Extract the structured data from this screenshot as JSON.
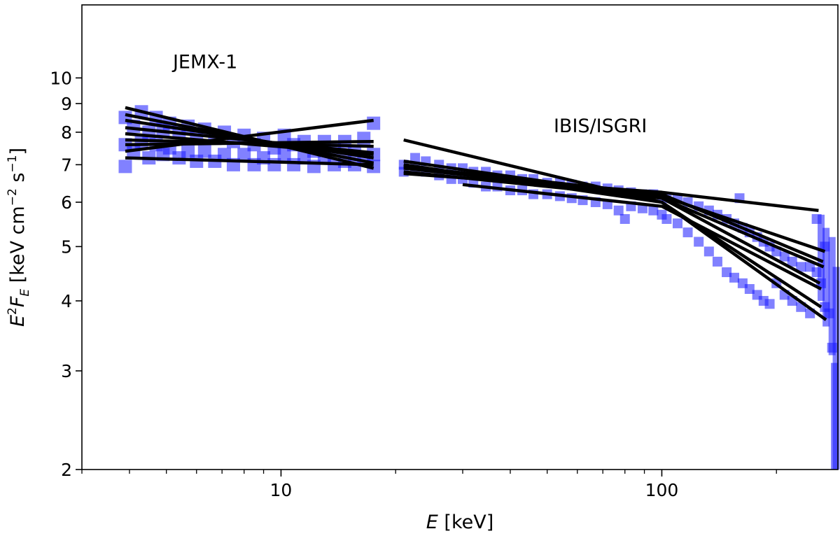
{
  "chart_data": {
    "type": "scatter",
    "title": "",
    "xlabel": {
      "symbol": "E",
      "rest": " [keV]"
    },
    "ylabel": {
      "base": "E",
      "sup": "2",
      "F": "F",
      "sub": "E",
      "rest_a": " [keV cm",
      "sup2": "−2",
      "rest_b": " s",
      "sup3": "−1",
      "rest_c": "]"
    },
    "x_scale": "log",
    "y_scale": "log",
    "xlim": [
      3.0,
      290
    ],
    "ylim": [
      2.0,
      13.5
    ],
    "x_ticks": [
      {
        "value": 10,
        "label": "10"
      },
      {
        "value": 100,
        "label": "100"
      }
    ],
    "y_ticks": [
      {
        "value": 2,
        "label": "2"
      },
      {
        "value": 3,
        "label": "3"
      },
      {
        "value": 4,
        "label": "4"
      },
      {
        "value": 5,
        "label": "5"
      },
      {
        "value": 6,
        "label": "6"
      },
      {
        "value": 7,
        "label": "7"
      },
      {
        "value": 8,
        "label": "8"
      },
      {
        "value": 9,
        "label": "9"
      },
      {
        "value": 10,
        "label": "10"
      }
    ],
    "annotations": [
      {
        "text": "JEMX-1",
        "x": 5.2,
        "y": 10.4
      },
      {
        "text": "IBIS/ISGRI",
        "x": 52,
        "y": 8.0
      }
    ],
    "point_color": "#1a1aff",
    "model_color": "#000000",
    "jemx_points": [
      [
        3.9,
        8.5
      ],
      [
        3.9,
        7.6
      ],
      [
        3.9,
        6.95
      ],
      [
        4.1,
        8.2
      ],
      [
        4.1,
        7.4
      ],
      [
        4.3,
        8.7
      ],
      [
        4.3,
        7.7
      ],
      [
        4.5,
        8.0
      ],
      [
        4.5,
        7.2
      ],
      [
        4.7,
        8.5
      ],
      [
        4.7,
        7.6
      ],
      [
        4.9,
        8.1
      ],
      [
        4.9,
        7.3
      ],
      [
        5.1,
        8.3
      ],
      [
        5.1,
        7.5
      ],
      [
        5.4,
        8.0
      ],
      [
        5.4,
        7.2
      ],
      [
        5.7,
        8.2
      ],
      [
        5.7,
        7.4
      ],
      [
        6.0,
        7.9
      ],
      [
        6.0,
        7.1
      ],
      [
        6.3,
        8.1
      ],
      [
        6.3,
        7.4
      ],
      [
        6.7,
        7.8
      ],
      [
        6.7,
        7.1
      ],
      [
        7.1,
        8.0
      ],
      [
        7.1,
        7.3
      ],
      [
        7.5,
        7.7
      ],
      [
        7.5,
        7.0
      ],
      [
        8.0,
        7.9
      ],
      [
        8.0,
        7.3
      ],
      [
        8.5,
        7.6
      ],
      [
        8.5,
        7.0
      ],
      [
        9.0,
        7.8
      ],
      [
        9.0,
        7.2
      ],
      [
        9.6,
        7.5
      ],
      [
        9.6,
        7.0
      ],
      [
        10.2,
        7.9
      ],
      [
        10.2,
        7.3
      ],
      [
        10.8,
        7.6
      ],
      [
        10.8,
        7.0
      ],
      [
        11.5,
        7.7
      ],
      [
        11.5,
        7.2
      ],
      [
        12.2,
        7.4
      ],
      [
        12.2,
        6.95
      ],
      [
        13.0,
        7.7
      ],
      [
        13.0,
        7.2
      ],
      [
        13.8,
        7.5
      ],
      [
        13.8,
        7.0
      ],
      [
        14.7,
        7.7
      ],
      [
        14.7,
        7.1
      ],
      [
        15.6,
        7.4
      ],
      [
        15.6,
        7.0
      ],
      [
        16.5,
        7.8
      ],
      [
        16.5,
        7.2
      ],
      [
        17.5,
        8.3
      ],
      [
        17.5,
        7.3
      ],
      [
        17.5,
        6.95
      ]
    ],
    "isgri_points": [
      [
        21,
        7.0
      ],
      [
        21,
        6.8
      ],
      [
        22.5,
        7.2
      ],
      [
        22.5,
        6.9
      ],
      [
        24,
        7.1
      ],
      [
        24,
        6.8
      ],
      [
        26,
        7.0
      ],
      [
        26,
        6.7
      ],
      [
        28,
        6.9
      ],
      [
        28,
        6.6
      ],
      [
        30,
        6.9
      ],
      [
        30,
        6.6
      ],
      [
        32,
        6.8
      ],
      [
        32,
        6.5
      ],
      [
        34.5,
        6.8
      ],
      [
        34.5,
        6.4
      ],
      [
        37,
        6.7
      ],
      [
        37,
        6.4
      ],
      [
        40,
        6.7
      ],
      [
        40,
        6.3
      ],
      [
        43,
        6.6
      ],
      [
        43,
        6.3
      ],
      [
        46,
        6.6
      ],
      [
        46,
        6.2
      ],
      [
        50,
        6.5
      ],
      [
        50,
        6.2
      ],
      [
        54,
        6.5
      ],
      [
        54,
        6.15
      ],
      [
        58,
        6.45
      ],
      [
        58,
        6.1
      ],
      [
        62,
        6.4
      ],
      [
        62,
        6.05
      ],
      [
        67,
        6.4
      ],
      [
        67,
        6.0
      ],
      [
        72,
        6.35
      ],
      [
        72,
        5.95
      ],
      [
        77,
        6.3
      ],
      [
        77,
        5.8
      ],
      [
        80,
        5.6
      ],
      [
        83,
        6.25
      ],
      [
        83,
        5.9
      ],
      [
        89,
        6.2
      ],
      [
        89,
        5.85
      ],
      [
        95,
        6.2
      ],
      [
        95,
        5.8
      ],
      [
        100,
        6.15
      ],
      [
        100,
        5.7
      ],
      [
        103,
        6.1
      ],
      [
        103,
        5.6
      ],
      [
        110,
        6.1
      ],
      [
        110,
        5.5
      ],
      [
        117,
        6.0
      ],
      [
        117,
        5.3
      ],
      [
        125,
        5.9
      ],
      [
        125,
        5.1
      ],
      [
        133,
        5.8
      ],
      [
        133,
        4.9
      ],
      [
        140,
        5.7
      ],
      [
        140,
        4.7
      ],
      [
        148,
        5.6
      ],
      [
        148,
        4.5
      ],
      [
        155,
        5.5
      ],
      [
        155,
        4.4
      ],
      [
        160,
        6.1
      ],
      [
        163,
        5.4
      ],
      [
        163,
        4.3
      ],
      [
        170,
        5.3
      ],
      [
        170,
        4.2
      ],
      [
        178,
        5.2
      ],
      [
        178,
        4.1
      ],
      [
        185,
        5.1
      ],
      [
        185,
        4.0
      ],
      [
        192,
        5.0
      ],
      [
        192,
        3.95
      ],
      [
        200,
        4.9
      ],
      [
        200,
        4.3
      ],
      [
        210,
        4.8
      ],
      [
        210,
        4.1
      ],
      [
        220,
        4.7
      ],
      [
        220,
        4.0
      ],
      [
        232,
        4.6
      ],
      [
        232,
        3.9
      ],
      [
        245,
        4.6
      ],
      [
        245,
        3.8
      ],
      [
        255,
        5.6
      ],
      [
        255,
        4.5
      ],
      [
        262,
        4.3
      ],
      [
        268,
        5.0
      ],
      [
        268,
        3.9
      ],
      [
        275,
        3.8
      ],
      [
        280,
        3.3
      ]
    ],
    "isgri_bars": [
      [
        262,
        4.0,
        5.7
      ],
      [
        270,
        3.6,
        5.4
      ],
      [
        280,
        3.2,
        5.2
      ],
      [
        287,
        2.0,
        4.6
      ],
      [
        284,
        2.0,
        3.1
      ]
    ],
    "jemx_models": [
      [
        [
          3.9,
          8.85
        ],
        [
          17.5,
          6.9
        ]
      ],
      [
        [
          3.9,
          8.6
        ],
        [
          17.5,
          7.05
        ]
      ],
      [
        [
          3.9,
          8.4
        ],
        [
          17.5,
          7.2
        ]
      ],
      [
        [
          3.9,
          8.15
        ],
        [
          17.5,
          7.35
        ]
      ],
      [
        [
          3.9,
          7.95
        ],
        [
          17.5,
          7.3
        ]
      ],
      [
        [
          3.9,
          7.75
        ],
        [
          17.5,
          7.55
        ]
      ],
      [
        [
          3.9,
          7.6
        ],
        [
          17.5,
          7.7
        ]
      ],
      [
        [
          3.9,
          7.4
        ],
        [
          17.5,
          8.4
        ]
      ],
      [
        [
          3.9,
          7.2
        ],
        [
          17.5,
          7.0
        ]
      ]
    ],
    "isgri_models": [
      [
        [
          21,
          7.75
        ],
        [
          100,
          6.0
        ],
        [
          270,
          3.7
        ]
      ],
      [
        [
          21,
          7.1
        ],
        [
          100,
          6.1
        ],
        [
          260,
          4.3
        ]
      ],
      [
        [
          21,
          7.0
        ],
        [
          100,
          6.0
        ],
        [
          262,
          3.9
        ]
      ],
      [
        [
          21,
          6.95
        ],
        [
          100,
          6.2
        ],
        [
          265,
          4.7
        ]
      ],
      [
        [
          21,
          6.9
        ],
        [
          100,
          6.15
        ],
        [
          268,
          4.9
        ]
      ],
      [
        [
          21,
          6.8
        ],
        [
          100,
          6.1
        ],
        [
          266,
          4.6
        ]
      ],
      [
        [
          21,
          6.75
        ],
        [
          100,
          6.25
        ],
        [
          258,
          5.8
        ]
      ],
      [
        [
          30,
          6.45
        ],
        [
          100,
          5.9
        ],
        [
          262,
          4.2
        ]
      ]
    ]
  }
}
